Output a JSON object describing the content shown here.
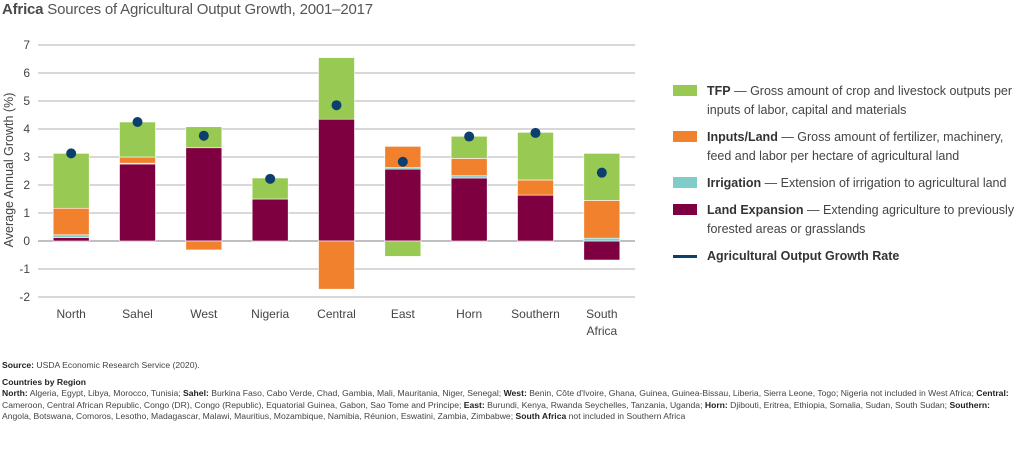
{
  "title": {
    "bold": "Africa",
    "rest": "Sources of Agricultural Output Growth, 2001–2017"
  },
  "colors": {
    "tfp": "#97c953",
    "inputs": "#f2812d",
    "irrigation": "#7ecdc8",
    "land": "#7f0040",
    "growth": "#0d3f6e",
    "grid": "#999999"
  },
  "chart_data": {
    "type": "bar",
    "stacked": true,
    "ylabel": "Average Annual Growth (%)",
    "ylim": [
      -2,
      7
    ],
    "yticks": [
      -2,
      -1,
      0,
      1,
      2,
      3,
      4,
      5,
      6,
      7
    ],
    "grid": true,
    "legend_position": "right",
    "categories": [
      "North",
      "Sahel",
      "West",
      "Nigeria",
      "Central",
      "East",
      "Horn",
      "Southern",
      "South Africa"
    ],
    "series": [
      {
        "name": "Land Expansion",
        "color_key": "land",
        "values": [
          0.12,
          2.75,
          3.33,
          1.5,
          4.35,
          2.57,
          2.25,
          1.64,
          -0.68
        ]
      },
      {
        "name": "Irrigation",
        "color_key": "irrigation",
        "values": [
          0.1,
          0.03,
          0,
          0,
          0,
          0.05,
          0.08,
          0,
          0.1
        ]
      },
      {
        "name": "Inputs/Land",
        "color_key": "inputs",
        "values": [
          0.95,
          0.22,
          -0.32,
          0,
          -1.72,
          0.76,
          0.62,
          0.54,
          1.35
        ]
      },
      {
        "name": "TFP",
        "color_key": "tfp",
        "values": [
          1.96,
          1.25,
          0.75,
          0.75,
          2.2,
          -0.55,
          0.79,
          1.7,
          1.68
        ]
      }
    ],
    "line_series": {
      "name": "Agricultural Output Growth Rate",
      "values": [
        3.13,
        4.25,
        3.76,
        2.22,
        4.85,
        2.83,
        3.73,
        3.86,
        2.44
      ]
    }
  },
  "legend": [
    {
      "key": "tfp",
      "label": "TFP",
      "desc": "— Gross amount of crop and livestock outputs per inputs of labor, capital and materials"
    },
    {
      "key": "inputs",
      "label": "Inputs/Land",
      "desc": "— Gross amount of fertilizer, machinery, feed and labor per hectare of agricultural land"
    },
    {
      "key": "irrigation",
      "label": "Irrigation",
      "desc": "— Extension of irrigation to agricultural land"
    },
    {
      "key": "land",
      "label": "Land Expansion",
      "desc": "— Extending agriculture to previously forested areas or grasslands"
    },
    {
      "key": "growth",
      "label": "Agricultural Output Growth Rate",
      "desc": ""
    }
  ],
  "notes": {
    "source_label": "Source:",
    "source": "USDA Economic Research Service (2020).",
    "countries_heading": "Countries by Region",
    "regions": [
      {
        "name": "North:",
        "text": "Algeria, Egypt, Libya, Morocco, Tunisia;"
      },
      {
        "name": "Sahel:",
        "text": "Burkina Faso, Cabo Verde, Chad, Gambia, Mali, Mauritania, Niger, Senegal;"
      },
      {
        "name": "West:",
        "text": "Benin, Côte d'Ivoire, Ghana, Guinea, Guinea-Bissau, Liberia, Sierra Leone, Togo; Nigeria not included in West Africa;"
      },
      {
        "name": "Central:",
        "text": "Cameroon, Central African Republic, Congo (DR), Congo (Republic), Equatorial Guinea, Gabon, Sao Tome and Principe;"
      },
      {
        "name": "East:",
        "text": "Burundi, Kenya, Rwanda Seychelles, Tanzania, Uganda;"
      },
      {
        "name": "Horn:",
        "text": "Djibouti, Eritrea, Ethiopia, Somalia, Sudan, South Sudan;"
      },
      {
        "name": "Southern:",
        "text": "Angola, Botswana, Comoros, Lesotho, Madagascar, Malawi, Mauritius, Mozambique, Namibia, Réunion, Eswatini, Zambia, Zimbabwe;"
      },
      {
        "name": "South Africa",
        "text": "not included in Southern Africa"
      }
    ]
  }
}
